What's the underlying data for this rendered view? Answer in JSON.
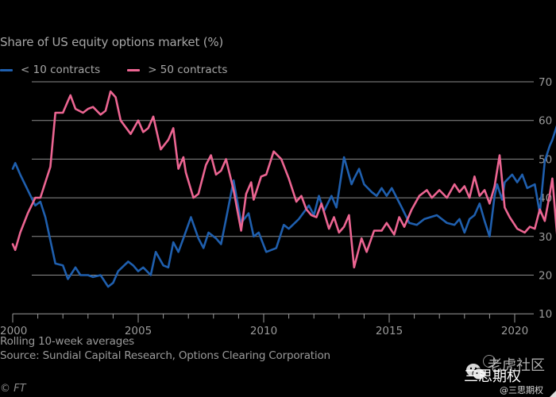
{
  "chart_data": {
    "type": "line",
    "title": "Share of US equity options market (%)",
    "xlabel": "",
    "ylabel": "",
    "xlim": [
      2000,
      2020.9
    ],
    "ylim": [
      10,
      70
    ],
    "x_ticks": [
      2000,
      2005,
      2010,
      2015,
      2020
    ],
    "x_tick_labels": [
      "2000",
      "2005",
      "2010",
      "2015",
      "2020"
    ],
    "x_minor_ticks_every_year": true,
    "y_ticks": [
      10,
      20,
      30,
      40,
      50,
      60,
      70
    ],
    "y_tick_labels": [
      "10",
      "20",
      "30",
      "40",
      "50",
      "60",
      "70"
    ],
    "y_axis_side": "right",
    "grid": "horizontal",
    "legend_position": "top-left",
    "series": [
      {
        "name": "< 10 contracts",
        "color": "#1f5fae",
        "points": [
          [
            2000.0,
            47.5
          ],
          [
            2000.1,
            49.0
          ],
          [
            2000.3,
            46.0
          ],
          [
            2000.6,
            42.0
          ],
          [
            2000.9,
            38.0
          ],
          [
            2001.1,
            39.0
          ],
          [
            2001.3,
            35.0
          ],
          [
            2001.5,
            29.0
          ],
          [
            2001.7,
            23.0
          ],
          [
            2002.0,
            22.5
          ],
          [
            2002.2,
            19.0
          ],
          [
            2002.5,
            22.0
          ],
          [
            2002.7,
            20.0
          ],
          [
            2003.0,
            20.0
          ],
          [
            2003.2,
            19.5
          ],
          [
            2003.5,
            20.0
          ],
          [
            2003.8,
            17.0
          ],
          [
            2004.0,
            18.0
          ],
          [
            2004.2,
            21.0
          ],
          [
            2004.6,
            23.5
          ],
          [
            2004.8,
            22.5
          ],
          [
            2005.0,
            21.0
          ],
          [
            2005.2,
            22.0
          ],
          [
            2005.5,
            20.0
          ],
          [
            2005.7,
            26.0
          ],
          [
            2006.0,
            22.5
          ],
          [
            2006.2,
            22.0
          ],
          [
            2006.4,
            28.5
          ],
          [
            2006.6,
            26.0
          ],
          [
            2006.8,
            29.5
          ],
          [
            2007.1,
            35.0
          ],
          [
            2007.4,
            29.5
          ],
          [
            2007.6,
            27.0
          ],
          [
            2007.8,
            31.0
          ],
          [
            2008.1,
            29.5
          ],
          [
            2008.3,
            28.0
          ],
          [
            2008.5,
            34.5
          ],
          [
            2008.8,
            44.5
          ],
          [
            2009.1,
            33.5
          ],
          [
            2009.4,
            36.0
          ],
          [
            2009.6,
            30.0
          ],
          [
            2009.8,
            31.0
          ],
          [
            2010.1,
            26.0
          ],
          [
            2010.5,
            27.0
          ],
          [
            2010.8,
            33.0
          ],
          [
            2011.0,
            32.0
          ],
          [
            2011.4,
            34.5
          ],
          [
            2011.8,
            38.0
          ],
          [
            2012.0,
            35.5
          ],
          [
            2012.2,
            40.5
          ],
          [
            2012.4,
            36.5
          ],
          [
            2012.7,
            40.5
          ],
          [
            2012.9,
            37.5
          ],
          [
            2013.2,
            50.5
          ],
          [
            2013.5,
            43.5
          ],
          [
            2013.6,
            45.0
          ],
          [
            2013.8,
            47.5
          ],
          [
            2014.0,
            43.5
          ],
          [
            2014.3,
            41.5
          ],
          [
            2014.5,
            40.5
          ],
          [
            2014.7,
            42.5
          ],
          [
            2014.9,
            40.5
          ],
          [
            2015.1,
            42.5
          ],
          [
            2015.5,
            37.5
          ],
          [
            2015.8,
            33.5
          ],
          [
            2016.1,
            33.0
          ],
          [
            2016.4,
            34.5
          ],
          [
            2016.9,
            35.5
          ],
          [
            2017.3,
            33.5
          ],
          [
            2017.6,
            33.0
          ],
          [
            2017.8,
            34.5
          ],
          [
            2018.0,
            31.0
          ],
          [
            2018.2,
            34.5
          ],
          [
            2018.4,
            35.5
          ],
          [
            2018.6,
            38.5
          ],
          [
            2018.8,
            34.0
          ],
          [
            2019.0,
            30.0
          ],
          [
            2019.2,
            40.5
          ],
          [
            2019.3,
            43.5
          ],
          [
            2019.5,
            39.5
          ],
          [
            2019.6,
            44.0
          ],
          [
            2019.9,
            46.0
          ],
          [
            2020.1,
            44.0
          ],
          [
            2020.3,
            46.0
          ],
          [
            2020.5,
            42.5
          ],
          [
            2020.8,
            43.5
          ],
          [
            2021.0,
            36.0
          ],
          [
            2021.2,
            49.5
          ],
          [
            2021.4,
            53.5
          ],
          [
            2021.5,
            55.0
          ],
          [
            2021.7,
            59.0
          ]
        ]
      },
      {
        "name": "> 50 contracts",
        "color": "#ec6592",
        "points": [
          [
            2000.0,
            28.0
          ],
          [
            2000.1,
            26.5
          ],
          [
            2000.3,
            31.0
          ],
          [
            2000.6,
            36.0
          ],
          [
            2000.9,
            40.0
          ],
          [
            2001.1,
            40.0
          ],
          [
            2001.3,
            44.0
          ],
          [
            2001.5,
            48.0
          ],
          [
            2001.7,
            62.0
          ],
          [
            2002.0,
            62.0
          ],
          [
            2002.2,
            65.0
          ],
          [
            2002.3,
            66.5
          ],
          [
            2002.5,
            63.0
          ],
          [
            2002.8,
            62.0
          ],
          [
            2003.0,
            63.0
          ],
          [
            2003.2,
            63.5
          ],
          [
            2003.5,
            61.5
          ],
          [
            2003.7,
            62.5
          ],
          [
            2003.9,
            67.5
          ],
          [
            2004.1,
            66.0
          ],
          [
            2004.3,
            60.0
          ],
          [
            2004.7,
            56.5
          ],
          [
            2005.0,
            60.0
          ],
          [
            2005.2,
            57.0
          ],
          [
            2005.4,
            58.0
          ],
          [
            2005.6,
            61.0
          ],
          [
            2005.9,
            52.5
          ],
          [
            2006.2,
            55.0
          ],
          [
            2006.4,
            58.0
          ],
          [
            2006.6,
            47.5
          ],
          [
            2006.8,
            50.5
          ],
          [
            2006.9,
            46.5
          ],
          [
            2007.2,
            40.0
          ],
          [
            2007.4,
            41.0
          ],
          [
            2007.7,
            48.5
          ],
          [
            2007.9,
            51.0
          ],
          [
            2008.1,
            46.0
          ],
          [
            2008.3,
            47.0
          ],
          [
            2008.5,
            50.0
          ],
          [
            2008.8,
            42.0
          ],
          [
            2009.1,
            31.5
          ],
          [
            2009.3,
            41.0
          ],
          [
            2009.5,
            44.0
          ],
          [
            2009.6,
            39.5
          ],
          [
            2009.9,
            45.5
          ],
          [
            2010.1,
            46.0
          ],
          [
            2010.4,
            52.0
          ],
          [
            2010.7,
            50.0
          ],
          [
            2011.0,
            45.0
          ],
          [
            2011.3,
            39.0
          ],
          [
            2011.5,
            40.5
          ],
          [
            2011.7,
            37.0
          ],
          [
            2011.9,
            35.5
          ],
          [
            2012.1,
            35.0
          ],
          [
            2012.3,
            38.5
          ],
          [
            2012.6,
            32.0
          ],
          [
            2012.8,
            35.0
          ],
          [
            2013.0,
            31.0
          ],
          [
            2013.2,
            32.5
          ],
          [
            2013.4,
            35.5
          ],
          [
            2013.6,
            22.0
          ],
          [
            2013.9,
            29.5
          ],
          [
            2014.1,
            26.0
          ],
          [
            2014.4,
            31.5
          ],
          [
            2014.7,
            31.5
          ],
          [
            2014.9,
            33.5
          ],
          [
            2015.2,
            30.5
          ],
          [
            2015.4,
            35.0
          ],
          [
            2015.6,
            32.5
          ],
          [
            2015.9,
            37.0
          ],
          [
            2016.2,
            40.5
          ],
          [
            2016.5,
            42.0
          ],
          [
            2016.7,
            40.0
          ],
          [
            2017.0,
            42.0
          ],
          [
            2017.3,
            40.0
          ],
          [
            2017.6,
            43.5
          ],
          [
            2017.8,
            41.5
          ],
          [
            2018.0,
            43.0
          ],
          [
            2018.2,
            40.0
          ],
          [
            2018.4,
            45.5
          ],
          [
            2018.6,
            40.5
          ],
          [
            2018.8,
            42.0
          ],
          [
            2019.0,
            38.5
          ],
          [
            2019.2,
            43.0
          ],
          [
            2019.4,
            51.0
          ],
          [
            2019.6,
            37.5
          ],
          [
            2019.8,
            35.0
          ],
          [
            2020.1,
            32.0
          ],
          [
            2020.4,
            31.0
          ],
          [
            2020.6,
            32.5
          ],
          [
            2020.8,
            32.0
          ],
          [
            2021.0,
            37.0
          ],
          [
            2021.2,
            34.0
          ],
          [
            2021.4,
            41.0
          ],
          [
            2021.5,
            45.0
          ],
          [
            2021.7,
            29.5
          ],
          [
            2021.9,
            26.0
          ],
          [
            2022.1,
            25.0
          ],
          [
            2022.2,
            23.0
          ]
        ]
      }
    ],
    "notes": [
      "Rolling 10-week averages",
      "Source: Sundial Capital Research, Options Clearing Corporation"
    ],
    "copyright": "© FT"
  },
  "watermark": {
    "line1": "老虎社区",
    "line2": "三思期权",
    "line3": "@三思期权"
  }
}
